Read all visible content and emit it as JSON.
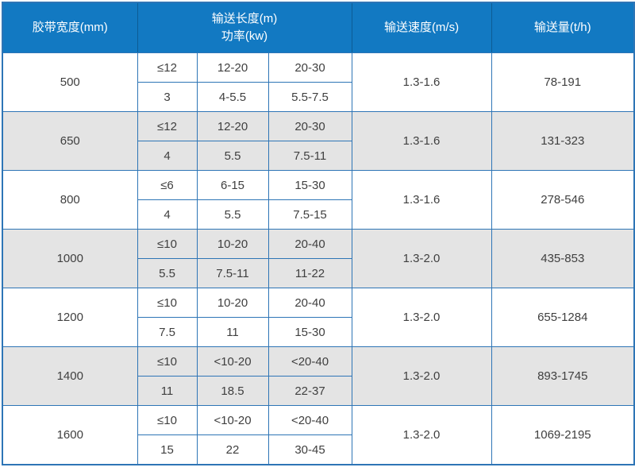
{
  "table": {
    "headers": {
      "belt_width": "胶带宽度(mm)",
      "length_line1": "输送长度(m)",
      "length_line2": "功率(kw)",
      "speed": "输送速度(m/s)",
      "capacity": "输送量(t/h)"
    },
    "rows": [
      {
        "width": "500",
        "length": [
          "≤12",
          "12-20",
          "20-30"
        ],
        "power": [
          "3",
          "4-5.5",
          "5.5-7.5"
        ],
        "speed": "1.3-1.6",
        "capacity": "78-191"
      },
      {
        "width": "650",
        "length": [
          "≤12",
          "12-20",
          "20-30"
        ],
        "power": [
          "4",
          "5.5",
          "7.5-11"
        ],
        "speed": "1.3-1.6",
        "capacity": "131-323"
      },
      {
        "width": "800",
        "length": [
          "≤6",
          "6-15",
          "15-30"
        ],
        "power": [
          "4",
          "5.5",
          "7.5-15"
        ],
        "speed": "1.3-1.6",
        "capacity": "278-546"
      },
      {
        "width": "1000",
        "length": [
          "≤10",
          "10-20",
          "20-40"
        ],
        "power": [
          "5.5",
          "7.5-11",
          "11-22"
        ],
        "speed": "1.3-2.0",
        "capacity": "435-853"
      },
      {
        "width": "1200",
        "length": [
          "≤10",
          "10-20",
          "20-40"
        ],
        "power": [
          "7.5",
          "11",
          "15-30"
        ],
        "speed": "1.3-2.0",
        "capacity": "655-1284"
      },
      {
        "width": "1400",
        "length": [
          "≤10",
          "<10-20",
          "<20-40"
        ],
        "power": [
          "11",
          "18.5",
          "22-37"
        ],
        "speed": "1.3-2.0",
        "capacity": "893-1745"
      },
      {
        "width": "1600",
        "length": [
          "≤10",
          "<10-20",
          "<20-40"
        ],
        "power": [
          "15",
          "22",
          "30-45"
        ],
        "speed": "1.3-2.0",
        "capacity": "1069-2195"
      }
    ],
    "colors": {
      "header_bg": "#1279c2",
      "header_text": "#ffffff",
      "border": "#2e75b6",
      "row_bg": "#ffffff",
      "row_alt_bg": "#e4e4e4",
      "body_text": "#3f3f3f"
    }
  }
}
